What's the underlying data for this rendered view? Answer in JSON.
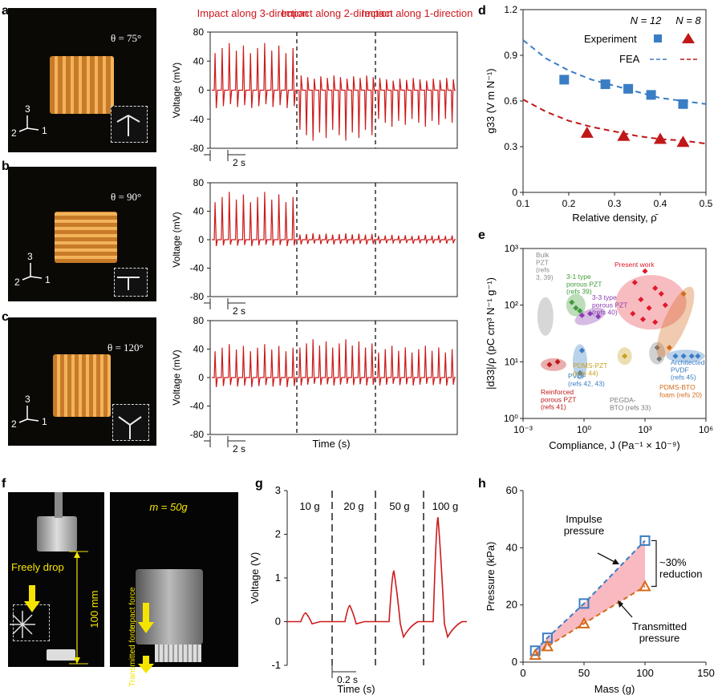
{
  "panels": {
    "a": "a",
    "b": "b",
    "c": "c",
    "d": "d",
    "e": "e",
    "f": "f",
    "g": "g",
    "h": "h"
  },
  "photos_abc": [
    {
      "theta_label": "θ = 75°",
      "axis_3": "3",
      "axis_2": "2",
      "axis_1": "1"
    },
    {
      "theta_label": "θ = 90°",
      "axis_3": "3",
      "axis_2": "2",
      "axis_1": "1"
    },
    {
      "theta_label": "θ = 120°",
      "axis_3": "3",
      "axis_2": "2",
      "axis_1": "1"
    }
  ],
  "photo_f": {
    "freely_drop": "Freely\ndrop",
    "height": "100 mm",
    "mass": "m = 50g",
    "impact_force": "Impact\nforce",
    "transmitted_force": "Transmitted\nforce"
  },
  "chart_data": [
    {
      "id": "a-c",
      "type": "line",
      "ylabel": "Voltage (mV)",
      "xlabel": "Time (s)",
      "ylim": [
        -80,
        80
      ],
      "yticks": [
        "80",
        "40",
        "0",
        "-40",
        "-80"
      ],
      "scale_bar": "2 s",
      "segments": [
        "Impact along\n3-direction",
        "Impact along\n2-direction",
        "Impact along\n1-direction"
      ],
      "series": [
        {
          "theta": 75,
          "segment_peaks": [
            [
              58,
              -22
            ],
            [
              -62,
              18
            ],
            [
              -45,
              15
            ]
          ]
        },
        {
          "theta": 90,
          "segment_peaks": [
            [
              60,
              -8
            ],
            [
              8,
              -6
            ],
            [
              6,
              -5
            ]
          ]
        },
        {
          "theta": 120,
          "segment_peaks": [
            [
              42,
              -12
            ],
            [
              48,
              -10
            ],
            [
              40,
              -10
            ]
          ]
        }
      ]
    },
    {
      "id": "d",
      "type": "scatter",
      "xlabel": "Relative density, ρ̄",
      "ylabel": "g33 (V m N⁻¹)",
      "xlim": [
        0.1,
        0.5
      ],
      "ylim": [
        0,
        1.2
      ],
      "xticks": [
        "0.1",
        "0.2",
        "0.3",
        "0.4",
        "0.5"
      ],
      "yticks": [
        "0",
        "0.3",
        "0.6",
        "0.9",
        "1.2"
      ],
      "legend": {
        "n12": "N = 12",
        "n8": "N = 8",
        "experiment": "Experiment",
        "fea": "FEA"
      },
      "series": [
        {
          "name": "N = 12",
          "color": "#3a7dc4",
          "x": [
            0.19,
            0.28,
            0.33,
            0.38,
            0.45
          ],
          "y": [
            0.74,
            0.71,
            0.68,
            0.64,
            0.58
          ],
          "fea": [
            [
              0.1,
              1.0
            ],
            [
              0.15,
              0.88
            ],
            [
              0.2,
              0.8
            ],
            [
              0.25,
              0.74
            ],
            [
              0.3,
              0.7
            ],
            [
              0.35,
              0.66
            ],
            [
              0.4,
              0.62
            ],
            [
              0.45,
              0.6
            ],
            [
              0.5,
              0.58
            ]
          ]
        },
        {
          "name": "N = 8",
          "color": "#c01818",
          "x": [
            0.24,
            0.32,
            0.4,
            0.45
          ],
          "y": [
            0.39,
            0.37,
            0.35,
            0.33
          ],
          "fea": [
            [
              0.1,
              0.61
            ],
            [
              0.15,
              0.53
            ],
            [
              0.2,
              0.47
            ],
            [
              0.25,
              0.43
            ],
            [
              0.3,
              0.4
            ],
            [
              0.35,
              0.37
            ],
            [
              0.4,
              0.35
            ],
            [
              0.45,
              0.34
            ],
            [
              0.5,
              0.32
            ]
          ]
        }
      ]
    },
    {
      "id": "e",
      "type": "scatter",
      "xlabel": "Compliance, J (Pa⁻¹ × 10⁻⁹)",
      "ylabel": "|d33|/ρ (pC cm³ N⁻¹ g⁻¹)",
      "x_scale": "log",
      "y_scale": "log",
      "xticks": [
        "10⁻³",
        "10⁰",
        "10³",
        "10⁶"
      ],
      "yticks": [
        "10³",
        "10²",
        "10¹",
        "10⁰"
      ],
      "groups": [
        {
          "label": "Bulk\nPZT\n(refs\n3, 39)",
          "color": "#8c8c8c"
        },
        {
          "label": "3-1 type\nporous PZT\n(refs 39)",
          "color": "#3f9a3a"
        },
        {
          "label": "3-3 type\nporous PZT\n(refs 40)",
          "color": "#8a3db0"
        },
        {
          "label": "Present work",
          "color": "#e0192d"
        },
        {
          "label": "PVDF\n(refs 42, 43)",
          "color": "#3a7dc4"
        },
        {
          "label": "PDMS-PZT\n(refs 44)",
          "color": "#c9a020"
        },
        {
          "label": "Reinforced\nporous PZT\n(refs 41)",
          "color": "#c01818"
        },
        {
          "label": "PEGDA-\nBTO (refs 33)",
          "color": "#7a7a7a"
        },
        {
          "label": "PDMS-BTO\nfoam (refs 20)",
          "color": "#d46b1c"
        },
        {
          "label": "Architected\nPVDF\n(refs 45)",
          "color": "#3a7dc4"
        }
      ]
    },
    {
      "id": "g",
      "type": "line",
      "ylabel": "Voltage (V)",
      "xlabel": "Time (s)",
      "ylim": [
        -1,
        3
      ],
      "yticks": [
        "3",
        "2",
        "1",
        "0",
        "-1"
      ],
      "scale_bar": "0.2 s",
      "segments": [
        "10 g",
        "20 g",
        "50 g",
        "100 g"
      ],
      "peaks": [
        0.2,
        0.37,
        1.16,
        2.38
      ]
    },
    {
      "id": "h",
      "type": "line",
      "xlabel": "Mass (g)",
      "ylabel": "Pressure (kPa)",
      "xlim": [
        0,
        150
      ],
      "ylim": [
        0,
        60
      ],
      "xticks": [
        "0",
        "50",
        "100",
        "150"
      ],
      "yticks": [
        "0",
        "20",
        "40",
        "60"
      ],
      "series": [
        {
          "name": "Impulse\npressure",
          "color": "#3a7dc4",
          "x": [
            10,
            20,
            50,
            100
          ],
          "y": [
            4,
            8.5,
            20.5,
            42.5
          ]
        },
        {
          "name": "Transmitted\npressure",
          "color": "#d46b1c",
          "x": [
            10,
            20,
            50,
            100
          ],
          "y": [
            2.5,
            5.5,
            13.5,
            26.5
          ]
        }
      ],
      "annotation": "~30%\nreduction"
    }
  ]
}
